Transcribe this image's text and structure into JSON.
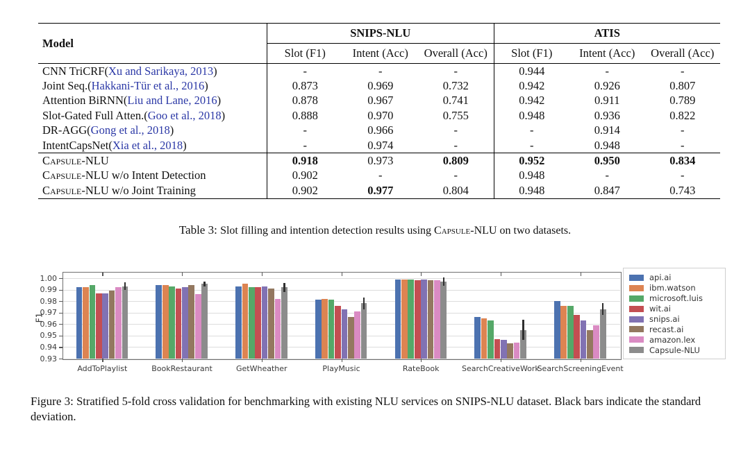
{
  "table": {
    "caption_label": "Table 3: ",
    "caption_before": "Slot filling and intention detection results using ",
    "caption_smallcaps": "Capsule-NLU",
    "caption_after": " on two datasets.",
    "header": {
      "model_label": "Model",
      "groups": [
        {
          "label": "SNIPS-NLU"
        },
        {
          "label": "ATIS"
        }
      ],
      "subcolumns": [
        "Slot (F1)",
        "Intent (Acc)",
        "Overall (Acc)"
      ]
    },
    "citation_color": "#2b38a6",
    "rows": [
      {
        "name_sc": "",
        "name_rest": "CNN TriCRF ",
        "cite": "Xu and Sarikaya, 2013",
        "values": [
          "-",
          "-",
          "-",
          "0.944",
          "-",
          "-"
        ],
        "bold": [],
        "section_start": false
      },
      {
        "name_sc": "",
        "name_rest": "Joint Seq. ",
        "cite": "Hakkani-Tür et al., 2016",
        "values": [
          "0.873",
          "0.969",
          "0.732",
          "0.942",
          "0.926",
          "0.807"
        ],
        "bold": [],
        "section_start": false
      },
      {
        "name_sc": "",
        "name_rest": "Attention BiRNN ",
        "cite": "Liu and Lane, 2016",
        "values": [
          "0.878",
          "0.967",
          "0.741",
          "0.942",
          "0.911",
          "0.789"
        ],
        "bold": [],
        "section_start": false
      },
      {
        "name_sc": "",
        "name_rest": "Slot-Gated Full Atten. ",
        "cite": "Goo et al., 2018",
        "values": [
          "0.888",
          "0.970",
          "0.755",
          "0.948",
          "0.936",
          "0.822"
        ],
        "bold": [],
        "section_start": false
      },
      {
        "name_sc": "",
        "name_rest": "DR-AGG ",
        "cite": "Gong et al., 2018",
        "values": [
          "-",
          "0.966",
          "-",
          "-",
          "0.914",
          "-"
        ],
        "bold": [],
        "section_start": false
      },
      {
        "name_sc": "",
        "name_rest": "IntentCapsNet ",
        "cite": "Xia et al., 2018",
        "values": [
          "-",
          "0.974",
          "-",
          "-",
          "0.948",
          "-"
        ],
        "bold": [],
        "section_start": false
      },
      {
        "name_sc": "Capsule-NLU",
        "name_rest": "",
        "cite": "",
        "values": [
          "0.918",
          "0.973",
          "0.809",
          "0.952",
          "0.950",
          "0.834"
        ],
        "bold": [
          0,
          2,
          3,
          4,
          5
        ],
        "section_start": true
      },
      {
        "name_sc": "Capsule-NLU",
        "name_rest": " w/o Intent Detection",
        "cite": "",
        "values": [
          "0.902",
          "-",
          "-",
          "0.948",
          "-",
          "-"
        ],
        "bold": [],
        "section_start": false
      },
      {
        "name_sc": "Capsule-NLU",
        "name_rest": " w/o Joint Training",
        "cite": "",
        "values": [
          "0.902",
          "0.977",
          "0.804",
          "0.948",
          "0.847",
          "0.743"
        ],
        "bold": [
          1
        ],
        "section_start": false
      }
    ]
  },
  "figure": {
    "caption_label": "Figure 3: ",
    "caption_text": "Stratified 5-fold cross validation for benchmarking with existing NLU services on SNIPS-NLU dataset. Black bars indicate the standard deviation."
  },
  "chart_data": {
    "type": "bar",
    "title": "",
    "xlabel": "",
    "ylabel": "F1",
    "ylim": [
      0.93,
      1.0
    ],
    "ytick_step": 0.01,
    "grid": true,
    "legend_position": "right",
    "categories": [
      "AddToPlaylist",
      "BookRestaurant",
      "GetWheather",
      "PlayMusic",
      "RateBook",
      "SearchCreativeWork",
      "SearchScreeningEvent"
    ],
    "series": [
      {
        "name": "api.ai",
        "color": "#4C72B0",
        "values": [
          0.992,
          0.994,
          0.993,
          0.981,
          0.999,
          0.966,
          0.98
        ]
      },
      {
        "name": "ibm.watson",
        "color": "#DD8452",
        "values": [
          0.992,
          0.994,
          0.995,
          0.982,
          0.999,
          0.965,
          0.976
        ]
      },
      {
        "name": "microsoft.luis",
        "color": "#55A868",
        "values": [
          0.994,
          0.993,
          0.992,
          0.981,
          0.999,
          0.963,
          0.976
        ]
      },
      {
        "name": "wit.ai",
        "color": "#C44E52",
        "values": [
          0.987,
          0.991,
          0.992,
          0.976,
          0.998,
          0.947,
          0.968
        ]
      },
      {
        "name": "snips.ai",
        "color": "#8172B3",
        "values": [
          0.987,
          0.992,
          0.993,
          0.973,
          0.999,
          0.946,
          0.963
        ]
      },
      {
        "name": "recast.ai",
        "color": "#937860",
        "values": [
          0.989,
          0.994,
          0.991,
          0.966,
          0.998,
          0.943,
          0.955
        ]
      },
      {
        "name": "amazon.lex",
        "color": "#DA8BC3",
        "values": [
          0.992,
          0.986,
          0.982,
          0.971,
          0.998,
          0.944,
          0.959
        ]
      },
      {
        "name": "Capsule-NLU",
        "color": "#8C8C8C",
        "values": [
          0.993,
          0.995,
          0.992,
          0.978,
          0.997,
          0.955,
          0.973
        ]
      }
    ],
    "error_bars": {
      "series": "Capsule-NLU",
      "color": "#2f2f2f",
      "values": [
        0.0035,
        0.002,
        0.004,
        0.005,
        0.0035,
        0.009,
        0.005
      ]
    }
  }
}
